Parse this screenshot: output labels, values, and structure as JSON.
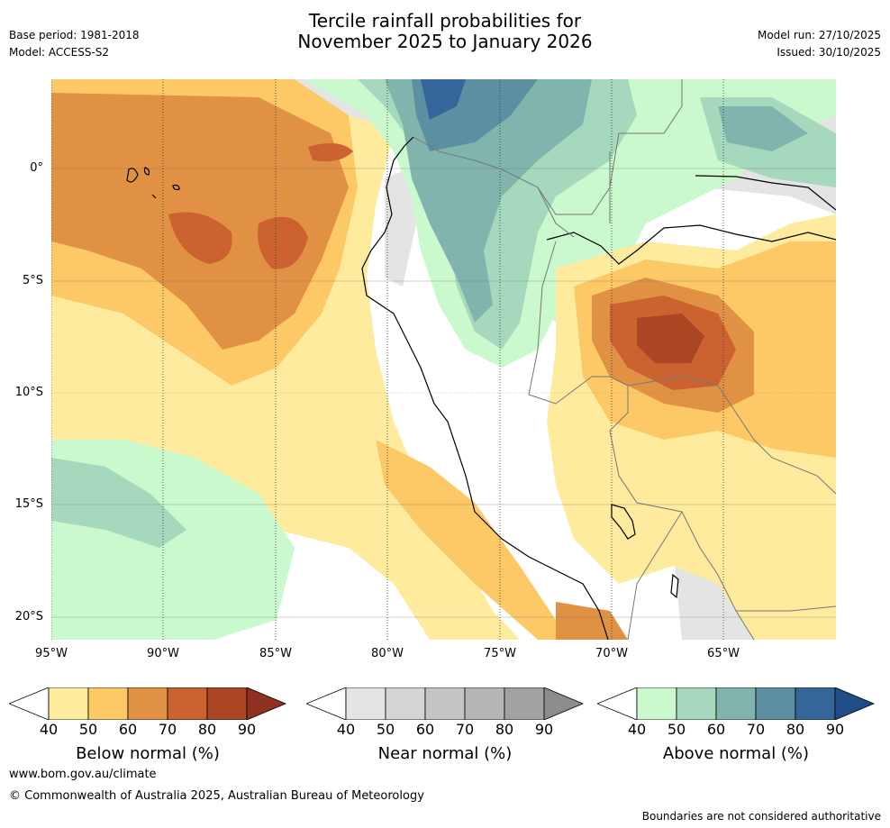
{
  "header": {
    "title_line1": "Tercile rainfall probabilities for",
    "title_line2": "November 2025 to January 2026",
    "base_period": "Base period: 1981-2018",
    "model": "Model: ACCESS-S2",
    "model_run": "Model run: 27/10/2025",
    "issued": "Issued: 30/10/2025"
  },
  "map": {
    "lat_labels": [
      "0°",
      "5°S",
      "10°S",
      "15°S",
      "20°S"
    ],
    "lon_labels": [
      "95°W",
      "90°W",
      "85°W",
      "80°W",
      "75°W",
      "70°W",
      "65°W"
    ]
  },
  "colorbars": [
    {
      "label": "Below normal (%)",
      "ticks": [
        "40",
        "50",
        "60",
        "70",
        "80",
        "90"
      ],
      "colors": [
        "#ffffff",
        "#feeb9d",
        "#fdc966",
        "#e19143",
        "#cb6230",
        "#ab4624",
        "#8f3020"
      ]
    },
    {
      "label": "Near normal (%)",
      "ticks": [
        "40",
        "50",
        "60",
        "70",
        "80",
        "90"
      ],
      "colors": [
        "#ffffff",
        "#e4e4e4",
        "#d5d5d5",
        "#c5c5c5",
        "#b5b5b5",
        "#a2a2a2",
        "#8c8c8c"
      ]
    },
    {
      "label": "Above normal (%)",
      "ticks": [
        "40",
        "50",
        "60",
        "70",
        "80",
        "90"
      ],
      "colors": [
        "#ffffff",
        "#c9f9cc",
        "#a5d8bd",
        "#80b4ad",
        "#5b8fa1",
        "#346699",
        "#1e4d87"
      ]
    }
  ],
  "footer": {
    "website": "www.bom.gov.au/climate",
    "copyright": "© Commonwealth of Australia 2025, Australian Bureau of Meteorology",
    "disclaimer": "Boundaries are not considered authoritative"
  }
}
